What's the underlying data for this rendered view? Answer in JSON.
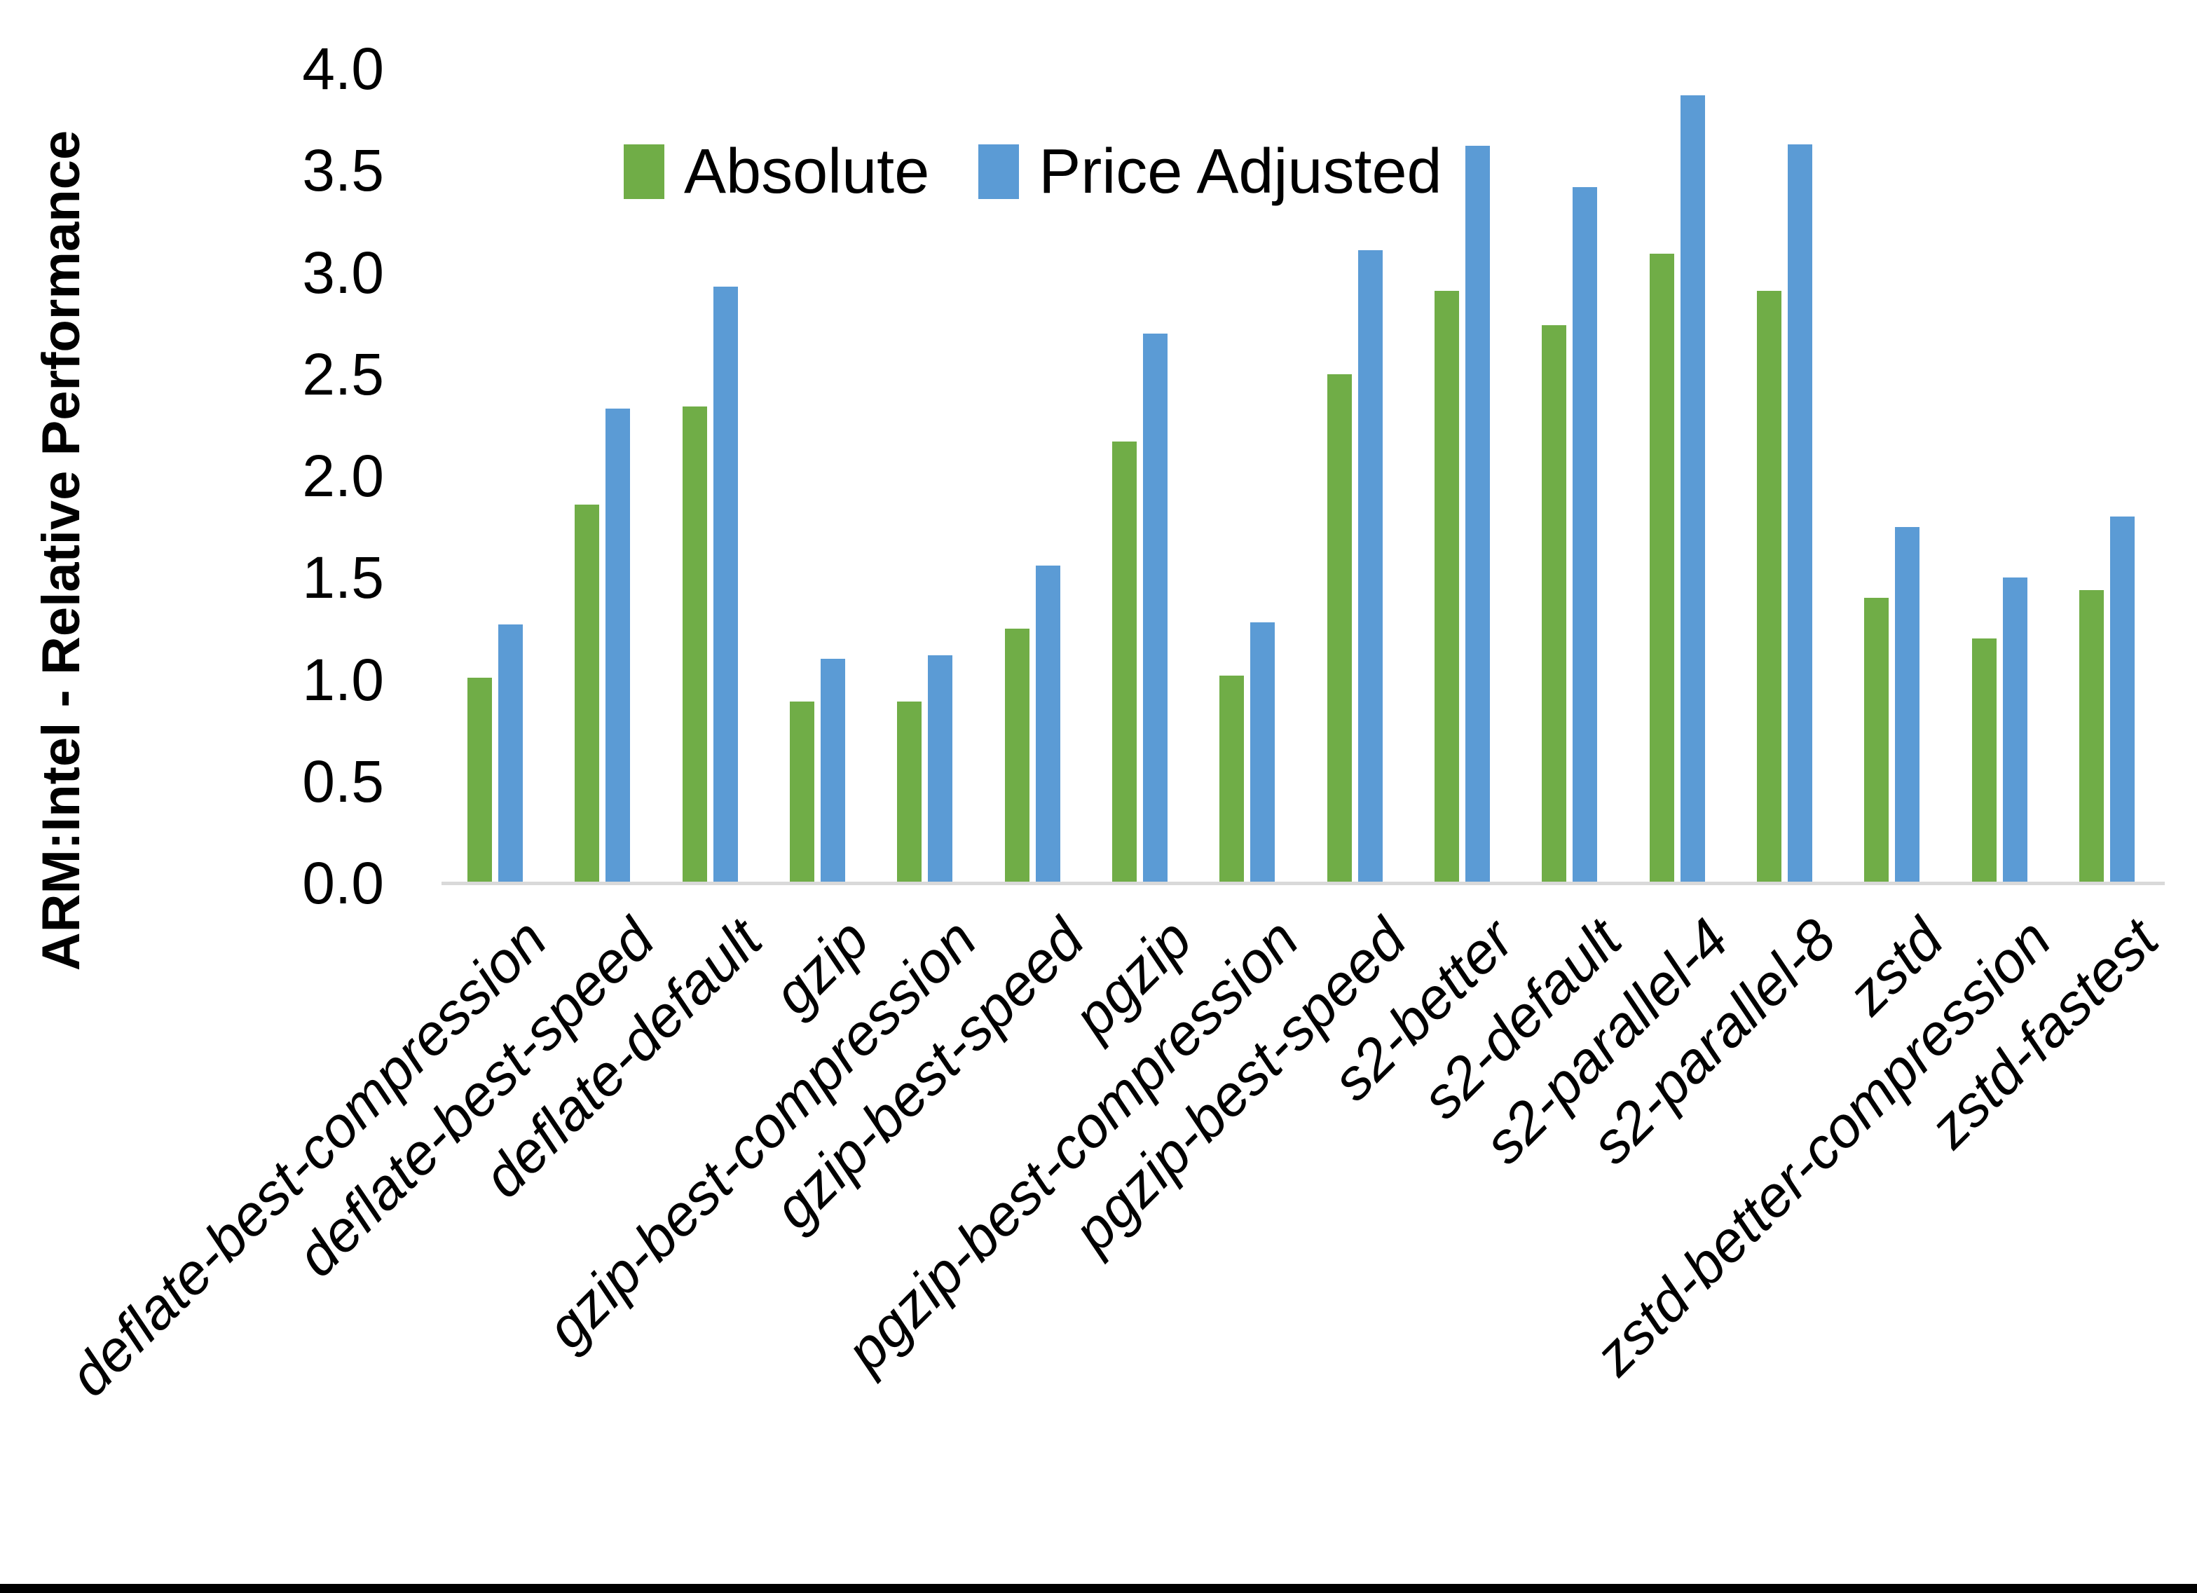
{
  "page": {
    "background": "#FFFFFF",
    "bottom_bar_color": "#000000"
  },
  "chart_data": {
    "type": "bar",
    "title": "",
    "xlabel": "",
    "ylabel": "ARM:Intel - Relative Performance",
    "ylim": [
      0,
      4
    ],
    "ytick_step": 0.5,
    "ytick_decimals": 1,
    "grid": false,
    "legend_position": "top-center",
    "axis_line_color": "#D9D9D9",
    "text_color": "#000000",
    "categories": [
      "deflate-best-compression",
      "deflate-best-speed",
      "deflate-default",
      "gzip",
      "gzip-best-compression",
      "gzip-best-speed",
      "pgzip",
      "pgzip-best-compression",
      "pgzip-best-speed",
      "s2-better",
      "s2-default",
      "s2-parallel-4",
      "s2-parallel-8",
      "zstd",
      "zstd-better-compression",
      "zstd-fastest"
    ],
    "series": [
      {
        "name": "Absolute",
        "color": "#70AD47",
        "values": [
          1.01,
          1.86,
          2.34,
          0.89,
          0.89,
          1.25,
          2.17,
          1.02,
          2.5,
          2.91,
          2.74,
          3.09,
          2.91,
          1.4,
          1.2,
          1.44
        ]
      },
      {
        "name": "Price Adjusted",
        "color": "#5B9BD5",
        "values": [
          1.27,
          2.33,
          2.93,
          1.1,
          1.12,
          1.56,
          2.7,
          1.28,
          3.11,
          3.62,
          3.42,
          3.87,
          3.63,
          1.75,
          1.5,
          1.8
        ]
      }
    ]
  }
}
